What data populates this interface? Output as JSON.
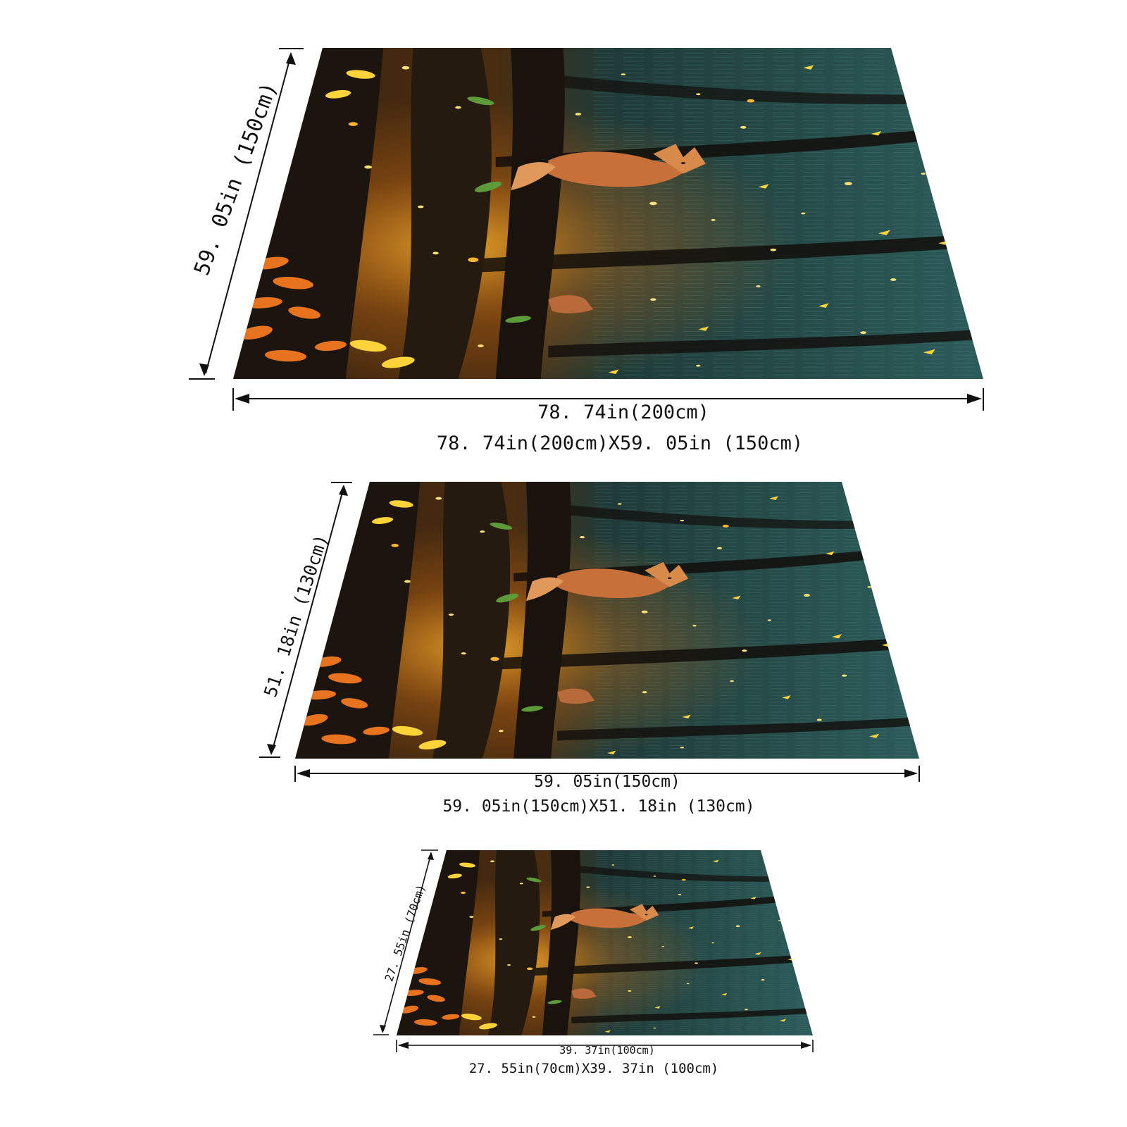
{
  "image": {
    "subject": "forest-fox-firefly-rug",
    "colors": {
      "forest_dark": "#0f2a2d",
      "forest_mid": "#2d5a58",
      "trunk": "#1c140e",
      "glow_orange": "#f29a1c",
      "glow_yellow": "#ffd43a",
      "fox": "#c8703a",
      "leaf_orange": "#e8731e",
      "dimension_line": "#111111"
    }
  },
  "sizes": [
    {
      "width_label": "78. 74in(200cm)",
      "height_label": "59. 05in (150cm)",
      "size_label": "78. 74in(200cm)X59. 05in (150cm)"
    },
    {
      "width_label": "59. 05in(150cm)",
      "height_label": "51. 18in (130cm)",
      "size_label": "59. 05in(150cm)X51. 18in (130cm)"
    },
    {
      "width_label": "39. 37in(100cm)",
      "height_label": "27. 55in (70cm)",
      "size_label": "27. 55in(70cm)X39. 37in (100cm)"
    }
  ]
}
